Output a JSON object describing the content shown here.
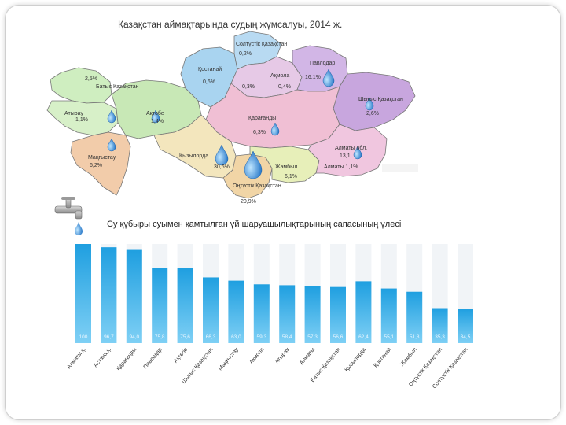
{
  "map": {
    "title": "Қазақстан аймақтарында судың жұмсалуы, 2014 ж.",
    "regions": [
      {
        "id": "soltustik",
        "name": "Солтүстік Қазақстан",
        "value": "0,2%",
        "color": "#b8daf2"
      },
      {
        "id": "kostanai",
        "name": "Қостанай",
        "value": "0,6%",
        "color": "#a9d4f0"
      },
      {
        "id": "akmola",
        "name": "Ақмола",
        "value": "0,3%",
        "value2": "0,4%",
        "color": "#e6c9e6"
      },
      {
        "id": "pavlodar",
        "name": "Павлодар",
        "value": "16,1%",
        "color": "#d2b6e6"
      },
      {
        "id": "batys",
        "name": "Батыс Қазақстан",
        "value": "2,5%",
        "color": "#cfeec0"
      },
      {
        "id": "atyrau",
        "name": "Атырау",
        "value": "1,1%",
        "color": "#d7f0c8"
      },
      {
        "id": "aktobe",
        "name": "Ақтөбе",
        "value": "1,4%",
        "color": "#c8e8b6"
      },
      {
        "id": "shygys",
        "name": "Шығыс Қазақстан",
        "value": "2,6%",
        "color": "#c8a6de"
      },
      {
        "id": "karagandy",
        "name": "Қарағанды",
        "value": "6,3%",
        "color": "#f0bfd4"
      },
      {
        "id": "mangystau",
        "name": "Маңғыстау",
        "value": "6,2%",
        "color": "#f2ccaa"
      },
      {
        "id": "kyzylorda",
        "name": "Қызылорда",
        "value": "30,6%",
        "color": "#f3e6bd"
      },
      {
        "id": "ontustik",
        "name": "Оңтүстік Қазақстан",
        "value": "20,9%",
        "color": "#f1d5a6"
      },
      {
        "id": "zhambyl",
        "name": "Жамбыл",
        "value": "6,1%",
        "color": "#e7efb9"
      },
      {
        "id": "almaty",
        "name": "Алматы обл.",
        "value": "13,1",
        "value2": "Алматы 1,1%",
        "color": "#f0c6df"
      }
    ]
  },
  "chart_data": {
    "type": "bar",
    "title": "Су құбыры суымен қамтылған үй шаруашылықтарының сапасының үлесі",
    "categories": [
      "Алматы қ.",
      "Астана қ.",
      "Қарағанды",
      "Павлодар",
      "Ақтөбе",
      "Шығыс Қазақстан",
      "Маңғыстау",
      "Ақмола",
      "Атырау",
      "Алматы",
      "Батыс Қазақстан",
      "Қызылорда",
      "Қостанай",
      "Жамбыл",
      "Оңтүстік Қазақстан",
      "Солтүстік Қазақстан"
    ],
    "values": [
      100,
      96.7,
      94.0,
      75.8,
      75.6,
      66.3,
      63.0,
      59.3,
      58.4,
      57.3,
      56.6,
      62.4,
      55.1,
      51.8,
      35.3,
      34.5
    ],
    "value_labels": [
      "100",
      "96,7",
      "94,0",
      "75,8",
      "75,6",
      "66,3",
      "63,0",
      "59,3",
      "58,4",
      "57,3",
      "56,6",
      "62,4",
      "55,1",
      "51,8",
      "35,3",
      "34,5"
    ],
    "ylim": [
      0,
      100
    ],
    "grid": false,
    "legend": "none",
    "bar_color_top": "#1f9fe0",
    "bar_color_bottom": "#7fd0f5"
  }
}
